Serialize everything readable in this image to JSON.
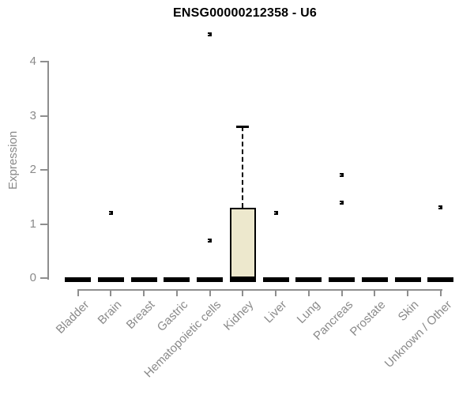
{
  "chart_data": {
    "type": "boxplot",
    "title": "ENSG00000212358 - U6",
    "xlabel": "",
    "ylabel": "Expression",
    "ylim": [
      0,
      4
    ],
    "yticks": [
      0,
      1,
      2,
      3,
      4
    ],
    "grid": false,
    "legend": false,
    "categories": [
      "Bladder",
      "Brain",
      "Breast",
      "Gastric",
      "Hematopoietic cells",
      "Kidney",
      "Liver",
      "Lung",
      "Pancreas",
      "Prostate",
      "Skin",
      "Unknown / Other"
    ],
    "boxes": [
      {
        "category": "Bladder",
        "whisker_low": 0,
        "q1": 0,
        "median": 0,
        "q3": 0,
        "whisker_high": 0,
        "outliers": []
      },
      {
        "category": "Brain",
        "whisker_low": 0,
        "q1": 0,
        "median": 0,
        "q3": 0,
        "whisker_high": 0,
        "outliers": [
          1.2
        ]
      },
      {
        "category": "Breast",
        "whisker_low": 0,
        "q1": 0,
        "median": 0,
        "q3": 0,
        "whisker_high": 0,
        "outliers": []
      },
      {
        "category": "Gastric",
        "whisker_low": 0,
        "q1": 0,
        "median": 0,
        "q3": 0,
        "whisker_high": 0,
        "outliers": []
      },
      {
        "category": "Hematopoietic cells",
        "whisker_low": 0,
        "q1": 0,
        "median": 0,
        "q3": 0,
        "whisker_high": 0,
        "outliers": [
          0.7,
          4.5
        ]
      },
      {
        "category": "Kidney",
        "whisker_low": 0,
        "q1": 0,
        "median": 0,
        "q3": 1.3,
        "whisker_high": 2.8,
        "outliers": []
      },
      {
        "category": "Liver",
        "whisker_low": 0,
        "q1": 0,
        "median": 0,
        "q3": 0,
        "whisker_high": 0,
        "outliers": [
          1.2
        ]
      },
      {
        "category": "Lung",
        "whisker_low": 0,
        "q1": 0,
        "median": 0,
        "q3": 0,
        "whisker_high": 0,
        "outliers": []
      },
      {
        "category": "Pancreas",
        "whisker_low": 0,
        "q1": 0,
        "median": 0,
        "q3": 0,
        "whisker_high": 0,
        "outliers": [
          1.4,
          1.9
        ]
      },
      {
        "category": "Prostate",
        "whisker_low": 0,
        "q1": 0,
        "median": 0,
        "q3": 0,
        "whisker_high": 0,
        "outliers": []
      },
      {
        "category": "Skin",
        "whisker_low": 0,
        "q1": 0,
        "median": 0,
        "q3": 0,
        "whisker_high": 0,
        "outliers": []
      },
      {
        "category": "Unknown / Other",
        "whisker_low": 0,
        "q1": 0,
        "median": 0,
        "q3": 0,
        "whisker_high": 0,
        "outliers": [
          1.3
        ]
      }
    ],
    "style": {
      "box_fill": "#EDE8CD",
      "box_border": "#000000",
      "whisker_color": "#000000",
      "whisker_style": "dashed",
      "outlier_marker": "small-black-square",
      "axis_color": "#8E8E8E",
      "text_color": "#8A8A8A",
      "title_color": "#000000",
      "background": "#FFFFFF"
    }
  }
}
